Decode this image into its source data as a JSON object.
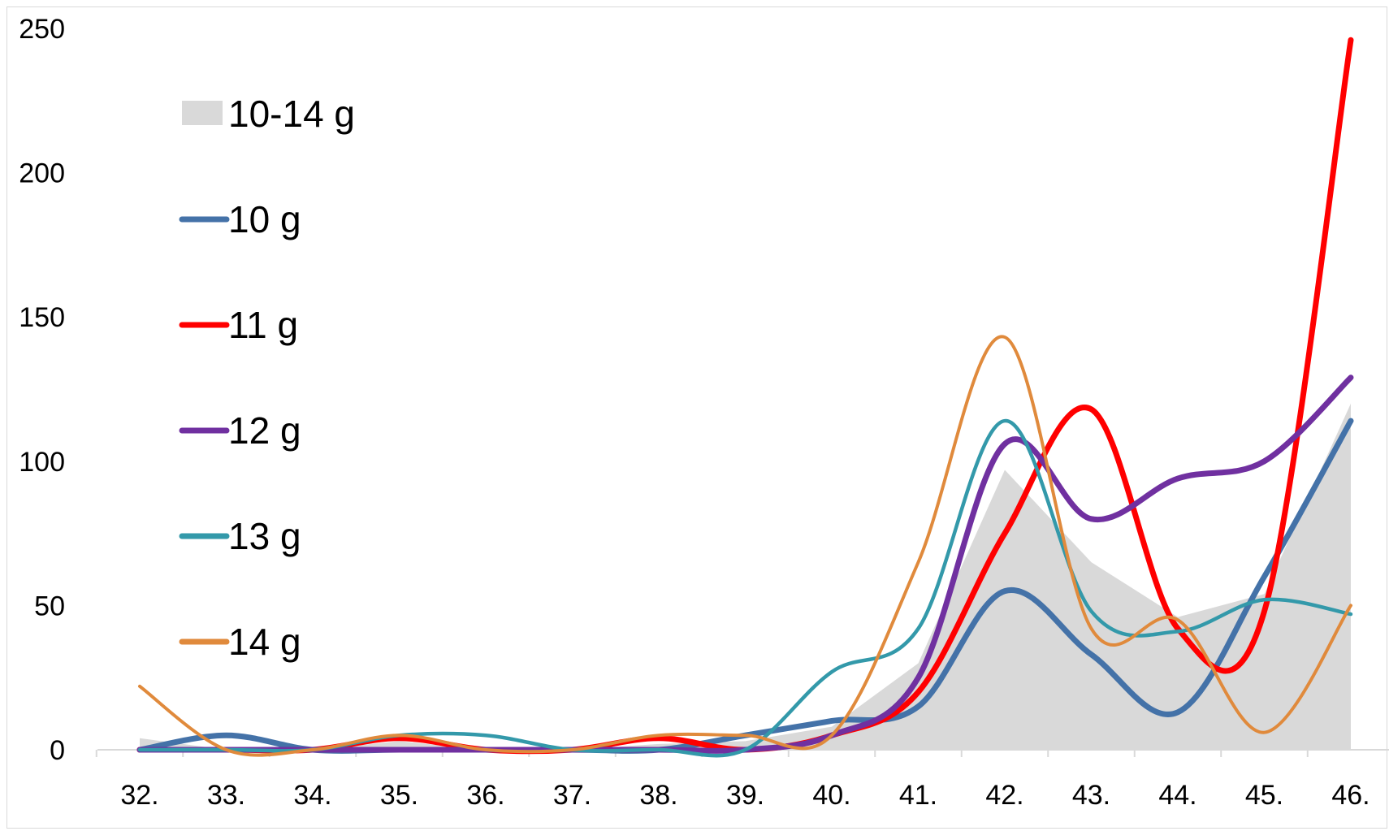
{
  "chart_data": {
    "type": "line",
    "title": "",
    "xlabel": "",
    "ylabel": "",
    "categories": [
      "32.",
      "33.",
      "34.",
      "35.",
      "36.",
      "37.",
      "38.",
      "39.",
      "40.",
      "41.",
      "42.",
      "43.",
      "44.",
      "45.",
      "46."
    ],
    "ylim": [
      0,
      250
    ],
    "yticks": [
      "0",
      "50",
      "100",
      "150",
      "200",
      "250"
    ],
    "grid": false,
    "legend_position": "left",
    "area_series": {
      "name": "10-14 g",
      "color": "#d9d9d9",
      "values": [
        4,
        0,
        0,
        3,
        0,
        0,
        2,
        3,
        8,
        30,
        97,
        65,
        46,
        54,
        120
      ]
    },
    "series": [
      {
        "name": "10 g",
        "color": "#4472a8",
        "values": [
          0,
          5,
          0,
          0,
          0,
          0,
          0,
          5,
          10,
          15,
          55,
          33,
          13,
          60,
          114
        ]
      },
      {
        "name": "11 g",
        "color": "#ff0000",
        "values": [
          0,
          0,
          0,
          4,
          0,
          0,
          4,
          0,
          5,
          20,
          75,
          118,
          42,
          48,
          246
        ]
      },
      {
        "name": "12 g",
        "color": "#7030a0",
        "values": [
          0,
          0,
          0,
          0,
          0,
          0,
          0,
          0,
          5,
          25,
          106,
          80,
          94,
          100,
          129
        ]
      },
      {
        "name": "13 g",
        "color": "#3399aa",
        "values": [
          0,
          0,
          0,
          5,
          5,
          0,
          0,
          0,
          27,
          42,
          114,
          48,
          41,
          52,
          47
        ]
      },
      {
        "name": "14 g",
        "color": "#e08a3c",
        "values": [
          22,
          0,
          0,
          5,
          0,
          0,
          5,
          5,
          5,
          65,
          143,
          42,
          45,
          6,
          50
        ]
      }
    ]
  }
}
